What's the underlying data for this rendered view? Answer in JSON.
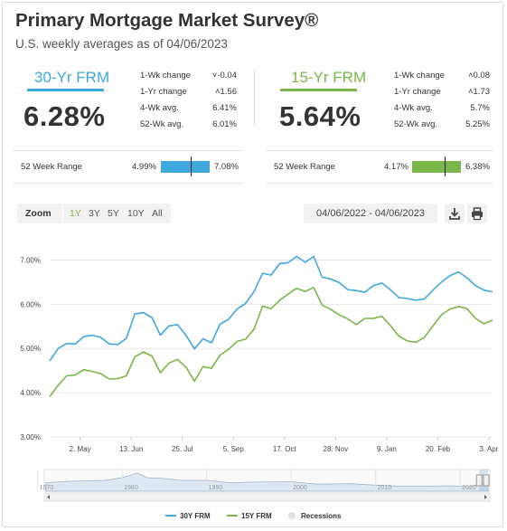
{
  "header": {
    "title": "Primary Mortgage Market Survey®",
    "subtitle": "U.S. weekly averages as of 04/06/2023"
  },
  "rates": [
    {
      "name": "30-Yr FRM",
      "value": "6.28%",
      "color": "#3ea8df",
      "stats": [
        {
          "label": "1-Wk change",
          "direction": "down",
          "value": "-0.04"
        },
        {
          "label": "1-Yr change",
          "direction": "up",
          "value": "1.56"
        },
        {
          "label": "4-Wk avg.",
          "direction": "",
          "value": "6.41%"
        },
        {
          "label": "52-Wk avg.",
          "direction": "",
          "value": "6.01%"
        }
      ],
      "range": {
        "label": "52 Week Range",
        "low": "4.99%",
        "high": "7.08%",
        "low_value": 4.99,
        "high_value": 7.08,
        "current_value": 6.28
      }
    },
    {
      "name": "15-Yr FRM",
      "value": "5.64%",
      "color": "#7ab648",
      "stats": [
        {
          "label": "1-Wk change",
          "direction": "up",
          "value": "0.08"
        },
        {
          "label": "1-Yr change",
          "direction": "up",
          "value": "1.73"
        },
        {
          "label": "4-Wk avg.",
          "direction": "",
          "value": "5.7%"
        },
        {
          "label": "52-Wk avg.",
          "direction": "",
          "value": "5.25%"
        }
      ],
      "range": {
        "label": "52 Week Range",
        "low": "4.17%",
        "high": "6.38%",
        "low_value": 4.17,
        "high_value": 6.38,
        "current_value": 5.64
      }
    }
  ],
  "toolbar": {
    "zoom_label": "Zoom",
    "zoom_options": [
      "1Y",
      "3Y",
      "5Y",
      "10Y",
      "All"
    ],
    "selected_zoom": "1Y",
    "date_range": "04/06/2022 - 04/06/2023",
    "download_icon": "download-icon",
    "print_icon": "print-icon"
  },
  "chart_data": {
    "type": "line",
    "title": "",
    "xlabel": "",
    "ylabel": "",
    "ylim": [
      3.0,
      7.5
    ],
    "y_ticks": [
      "3.00%",
      "4.00%",
      "5.00%",
      "6.00%",
      "7.00%"
    ],
    "x_tick_labels": [
      "2. May",
      "13. Jun",
      "25. Jul",
      "5. Sep",
      "17. Oct",
      "28. Nov",
      "9. Jan",
      "20. Feb",
      "3. Apr"
    ],
    "grid": true,
    "legend_position": "bottom",
    "x": [
      "2022-04-07",
      "2022-04-14",
      "2022-04-21",
      "2022-04-28",
      "2022-05-05",
      "2022-05-12",
      "2022-05-19",
      "2022-05-26",
      "2022-06-02",
      "2022-06-09",
      "2022-06-16",
      "2022-06-23",
      "2022-06-30",
      "2022-07-07",
      "2022-07-14",
      "2022-07-21",
      "2022-07-28",
      "2022-08-04",
      "2022-08-11",
      "2022-08-18",
      "2022-08-25",
      "2022-09-01",
      "2022-09-08",
      "2022-09-15",
      "2022-09-22",
      "2022-09-29",
      "2022-10-06",
      "2022-10-13",
      "2022-10-20",
      "2022-10-27",
      "2022-11-03",
      "2022-11-10",
      "2022-11-17",
      "2022-11-23",
      "2022-12-01",
      "2022-12-08",
      "2022-12-15",
      "2022-12-22",
      "2022-12-29",
      "2023-01-05",
      "2023-01-12",
      "2023-01-19",
      "2023-01-26",
      "2023-02-02",
      "2023-02-09",
      "2023-02-16",
      "2023-02-23",
      "2023-03-02",
      "2023-03-09",
      "2023-03-16",
      "2023-03-23",
      "2023-03-30",
      "2023-04-06"
    ],
    "series": [
      {
        "name": "30Y FRM",
        "color": "#3ea8df",
        "values": [
          4.72,
          5.0,
          5.11,
          5.1,
          5.27,
          5.3,
          5.25,
          5.1,
          5.09,
          5.23,
          5.78,
          5.81,
          5.7,
          5.3,
          5.51,
          5.54,
          5.3,
          4.99,
          5.22,
          5.13,
          5.55,
          5.66,
          5.89,
          6.02,
          6.29,
          6.7,
          6.66,
          6.92,
          6.94,
          7.08,
          6.95,
          7.08,
          6.61,
          6.58,
          6.49,
          6.33,
          6.31,
          6.27,
          6.42,
          6.48,
          6.33,
          6.15,
          6.13,
          6.09,
          6.12,
          6.32,
          6.5,
          6.65,
          6.73,
          6.6,
          6.42,
          6.32,
          6.28
        ]
      },
      {
        "name": "15Y FRM",
        "color": "#7ab648",
        "values": [
          3.91,
          4.17,
          4.38,
          4.4,
          4.52,
          4.48,
          4.43,
          4.31,
          4.32,
          4.38,
          4.81,
          4.92,
          4.83,
          4.45,
          4.67,
          4.75,
          4.58,
          4.26,
          4.59,
          4.55,
          4.85,
          4.98,
          5.16,
          5.21,
          5.44,
          5.96,
          5.9,
          6.09,
          6.23,
          6.36,
          6.29,
          6.38,
          5.98,
          5.9,
          5.76,
          5.67,
          5.54,
          5.68,
          5.68,
          5.73,
          5.52,
          5.28,
          5.17,
          5.14,
          5.25,
          5.51,
          5.76,
          5.89,
          5.95,
          5.9,
          5.68,
          5.56,
          5.64
        ]
      }
    ],
    "navigator": {
      "x_labels": [
        "1970",
        "1980",
        "1990",
        "2000",
        "2010",
        "2020"
      ]
    },
    "legend": [
      "30Y FRM",
      "15Y FRM",
      "Recessions"
    ]
  }
}
